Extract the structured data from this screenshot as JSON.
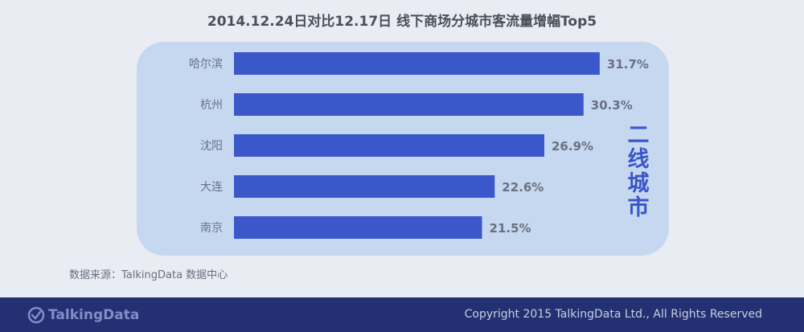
{
  "title": "2014.12.24日对比12.17日 线下商场分城市客流量增幅Top5",
  "side_label": [
    "二",
    "线",
    "城",
    "市"
  ],
  "source": "数据来源：TalkingData 数据中心",
  "footer": {
    "logo_text": "TalkingData",
    "copyright": "Copyright 2015 TalkingData Ltd., All Rights Reserved"
  },
  "colors": {
    "bar": "#3b58cb",
    "panel": "#c5d8f0",
    "footer": "#233071"
  },
  "chart_data": {
    "type": "bar",
    "orientation": "horizontal",
    "title": "2014.12.24日对比12.17日 线下商场分城市客流量增幅Top5",
    "categories": [
      "哈尔滨",
      "杭州",
      "沈阳",
      "大连",
      "南京"
    ],
    "values": [
      31.7,
      30.3,
      26.9,
      22.6,
      21.5
    ],
    "labels": [
      "31.7%",
      "30.3%",
      "26.9%",
      "22.6%",
      "21.5%"
    ],
    "unit": "%",
    "xlabel": "",
    "ylabel": "",
    "grid": false,
    "legend": "none"
  }
}
